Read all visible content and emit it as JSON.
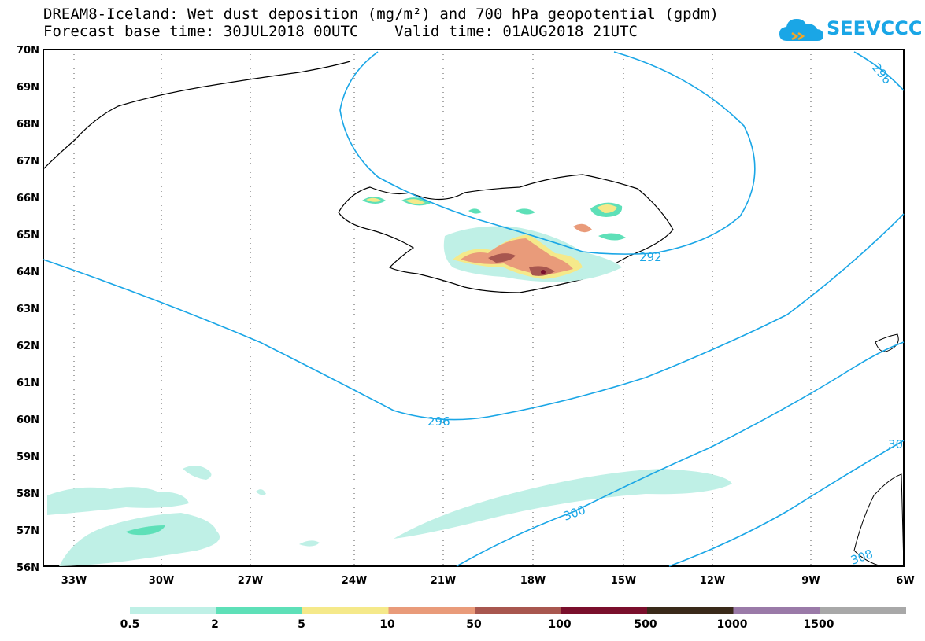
{
  "header": {
    "title_line1": "DREAM8-Iceland: Wet dust deposition (mg/m²) and 700 hPa geopotential (gpdm)",
    "title_line2": "Forecast base time: 30JUL2018 00UTC    Valid time: 01AUG2018 21UTC"
  },
  "logo": {
    "text": "SEEVCCC",
    "icon": "cloud-icon",
    "color": "#1aa6e6"
  },
  "map": {
    "lat_labels": [
      "70N",
      "69N",
      "68N",
      "67N",
      "66N",
      "65N",
      "64N",
      "63N",
      "62N",
      "61N",
      "60N",
      "59N",
      "58N",
      "57N",
      "56N"
    ],
    "lon_labels": [
      "33W",
      "30W",
      "27W",
      "24W",
      "21W",
      "18W",
      "15W",
      "12W",
      "9W",
      "6W"
    ],
    "contour_labels": [
      "296",
      "292",
      "296",
      "300",
      "30",
      "308"
    ],
    "contour_color": "#1aa6e6"
  },
  "legend": {
    "labels": [
      "0.5",
      "2",
      "5",
      "10",
      "50",
      "100",
      "500",
      "1000",
      "1500"
    ],
    "colors": [
      "#bff0e6",
      "#5ee0b8",
      "#f5e98a",
      "#e99b7a",
      "#a8574f",
      "#7a0f2c",
      "#3a2a1a",
      "#9a7aa8",
      "#a8a8a8"
    ]
  }
}
